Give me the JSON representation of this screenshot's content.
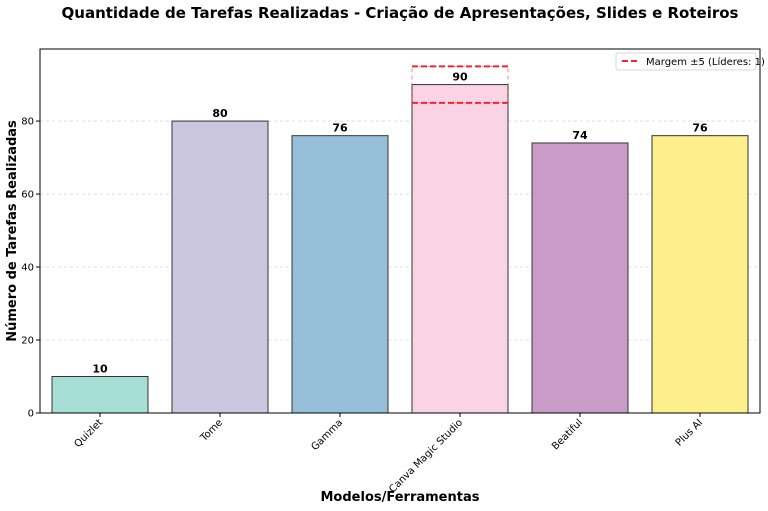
{
  "chart_data": {
    "type": "bar",
    "title": "Quantidade de Tarefas Realizadas - Criação de Apresentações, Slides e Roteiros",
    "xlabel": "Modelos/Ferramentas",
    "ylabel": "Número de Tarefas Realizadas",
    "categories": [
      "Quizlet",
      "Tome",
      "Gamma",
      "Canva Magic Studio",
      "Beatiful",
      "Plus AI"
    ],
    "values": [
      10,
      80,
      76,
      90,
      74,
      76
    ],
    "colors": [
      "#a6ddd4",
      "#cbc7e1",
      "#98bfd9",
      "#fad4e5",
      "#c89bc9",
      "#ffee8c"
    ],
    "ylim": [
      0,
      99.75
    ],
    "yticks": [
      0,
      20,
      40,
      60,
      80
    ],
    "grid": true,
    "margin": {
      "leader_value": 90,
      "band": 5,
      "label": "Margem ±5 (Líderes: 1)",
      "color": "#e8292e"
    },
    "legend_position": "top-right"
  }
}
